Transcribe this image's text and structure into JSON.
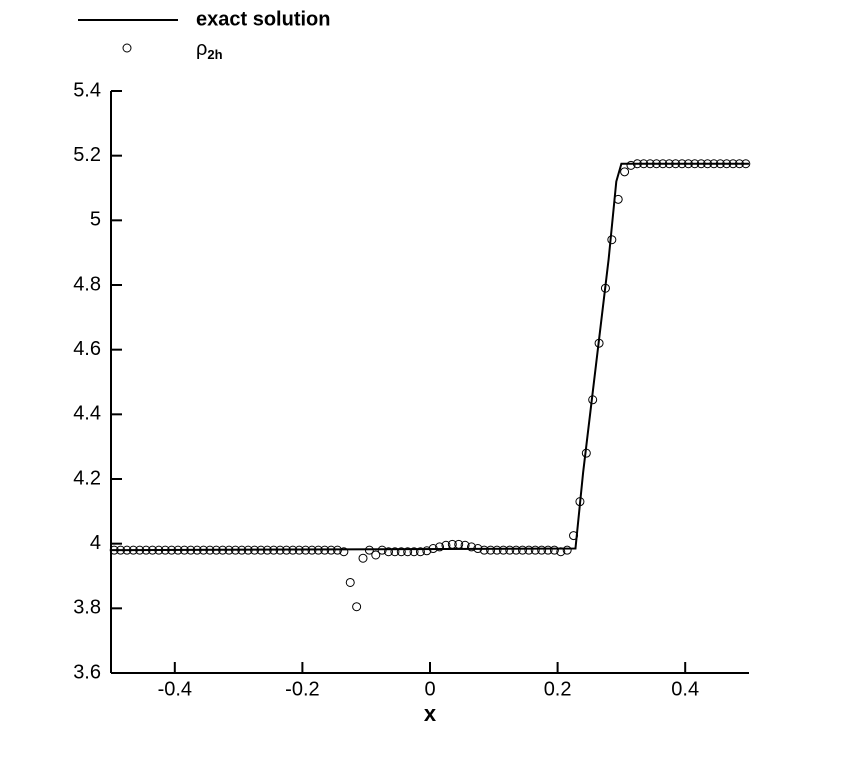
{
  "chart_data": {
    "type": "line-scatter",
    "xlabel": "x",
    "xlim": [
      -0.5,
      0.5
    ],
    "xticks": [
      -0.4,
      -0.2,
      0,
      0.2,
      0.4
    ],
    "ylim": [
      3.6,
      5.4
    ],
    "yticks": [
      3.6,
      3.8,
      4,
      4.2,
      4.4,
      4.6,
      4.8,
      5,
      5.2,
      5.4
    ],
    "legend": "top-left",
    "series": [
      {
        "name": "exact solution",
        "kind": "line",
        "color": "#000000",
        "x": [
          -0.5,
          0.228,
          0.24,
          0.26,
          0.28,
          0.292,
          0.3,
          0.5
        ],
        "values": [
          3.98,
          3.985,
          4.22,
          4.55,
          4.88,
          5.12,
          5.175,
          5.175
        ]
      },
      {
        "name": "ρ2h",
        "kind": "markers",
        "color": "#000000",
        "x": [
          -0.495,
          -0.485,
          -0.475,
          -0.465,
          -0.455,
          -0.445,
          -0.435,
          -0.425,
          -0.415,
          -0.405,
          -0.395,
          -0.385,
          -0.375,
          -0.365,
          -0.355,
          -0.345,
          -0.335,
          -0.325,
          -0.315,
          -0.305,
          -0.295,
          -0.285,
          -0.275,
          -0.265,
          -0.255,
          -0.245,
          -0.235,
          -0.225,
          -0.215,
          -0.205,
          -0.195,
          -0.185,
          -0.175,
          -0.165,
          -0.155,
          -0.145,
          -0.135,
          -0.125,
          -0.115,
          -0.105,
          -0.095,
          -0.085,
          -0.075,
          -0.065,
          -0.055,
          -0.045,
          -0.035,
          -0.025,
          -0.015,
          -0.005,
          0.005,
          0.015,
          0.025,
          0.035,
          0.045,
          0.055,
          0.065,
          0.075,
          0.085,
          0.095,
          0.105,
          0.115,
          0.125,
          0.135,
          0.145,
          0.155,
          0.165,
          0.175,
          0.185,
          0.195,
          0.205,
          0.215,
          0.225,
          0.235,
          0.245,
          0.255,
          0.265,
          0.275,
          0.285,
          0.295,
          0.305,
          0.315,
          0.325,
          0.335,
          0.345,
          0.355,
          0.365,
          0.375,
          0.385,
          0.395,
          0.405,
          0.415,
          0.425,
          0.435,
          0.445,
          0.455,
          0.465,
          0.475,
          0.485,
          0.495
        ],
        "values": [
          3.98,
          3.98,
          3.98,
          3.98,
          3.98,
          3.98,
          3.98,
          3.98,
          3.98,
          3.98,
          3.98,
          3.98,
          3.98,
          3.98,
          3.98,
          3.98,
          3.98,
          3.98,
          3.98,
          3.98,
          3.98,
          3.98,
          3.98,
          3.98,
          3.98,
          3.98,
          3.98,
          3.98,
          3.98,
          3.98,
          3.98,
          3.98,
          3.98,
          3.98,
          3.98,
          3.98,
          3.975,
          3.88,
          3.805,
          3.955,
          3.98,
          3.965,
          3.98,
          3.975,
          3.975,
          3.975,
          3.975,
          3.975,
          3.975,
          3.978,
          3.985,
          3.99,
          3.995,
          3.998,
          3.998,
          3.995,
          3.99,
          3.985,
          3.98,
          3.98,
          3.98,
          3.98,
          3.98,
          3.98,
          3.98,
          3.98,
          3.98,
          3.98,
          3.98,
          3.98,
          3.975,
          3.98,
          4.025,
          4.13,
          4.28,
          4.445,
          4.62,
          4.79,
          4.94,
          5.065,
          5.15,
          5.17,
          5.175,
          5.175,
          5.175,
          5.175,
          5.175,
          5.175,
          5.175,
          5.175,
          5.175,
          5.175,
          5.175,
          5.175,
          5.175,
          5.175,
          5.175,
          5.175,
          5.175,
          5.175
        ]
      }
    ]
  }
}
